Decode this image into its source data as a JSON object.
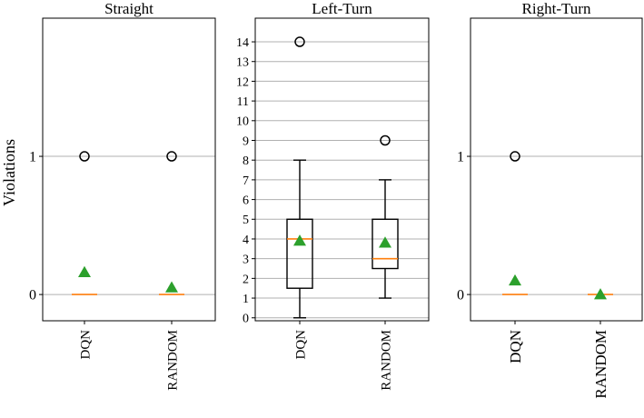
{
  "ylabel": "Violations",
  "colors": {
    "grid": "#b0b0b0",
    "median": "#ff7f0e",
    "mean": "#2ca02c",
    "box": "#000000"
  },
  "chart_data": [
    {
      "type": "box",
      "title": "Straight",
      "categories": [
        "DQN",
        "RANDOM"
      ],
      "yticks": [
        0,
        1
      ],
      "ylim": [
        -0.19,
        2.0
      ],
      "grid": true,
      "boxes": [
        {
          "name": "DQN",
          "q1": 0,
          "median": 0,
          "q3": 0,
          "whisker_low": 0,
          "whisker_high": 0,
          "mean": 0.16,
          "outliers": [
            1
          ]
        },
        {
          "name": "RANDOM",
          "q1": 0,
          "median": 0,
          "q3": 0,
          "whisker_low": 0,
          "whisker_high": 0,
          "mean": 0.05,
          "outliers": [
            1
          ]
        }
      ]
    },
    {
      "type": "box",
      "title": "Left-Turn",
      "categories": [
        "DQN",
        "RANDOM"
      ],
      "yticks": [
        0,
        1,
        2,
        3,
        4,
        5,
        6,
        7,
        8,
        9,
        10,
        11,
        12,
        13,
        14
      ],
      "ylim": [
        -0.15,
        15.2
      ],
      "grid": true,
      "boxes": [
        {
          "name": "DQN",
          "q1": 1.5,
          "median": 4,
          "q3": 5,
          "whisker_low": 0,
          "whisker_high": 8,
          "mean": 3.9,
          "outliers": [
            14
          ]
        },
        {
          "name": "RANDOM",
          "q1": 2.5,
          "median": 3,
          "q3": 5,
          "whisker_low": 1,
          "whisker_high": 7,
          "mean": 3.8,
          "outliers": [
            9
          ]
        }
      ]
    },
    {
      "type": "box",
      "title": "Right-Turn",
      "categories": [
        "DQN",
        "RANDOM"
      ],
      "yticks": [
        0,
        1
      ],
      "ylim": [
        -0.19,
        2.0
      ],
      "grid": true,
      "boxes": [
        {
          "name": "DQN",
          "q1": 0,
          "median": 0,
          "q3": 0,
          "whisker_low": 0,
          "whisker_high": 0,
          "mean": 0.1,
          "outliers": [
            1
          ]
        },
        {
          "name": "RANDOM",
          "q1": 0,
          "median": 0,
          "q3": 0,
          "whisker_low": 0,
          "whisker_high": 0,
          "mean": 0.0,
          "outliers": []
        }
      ]
    }
  ]
}
